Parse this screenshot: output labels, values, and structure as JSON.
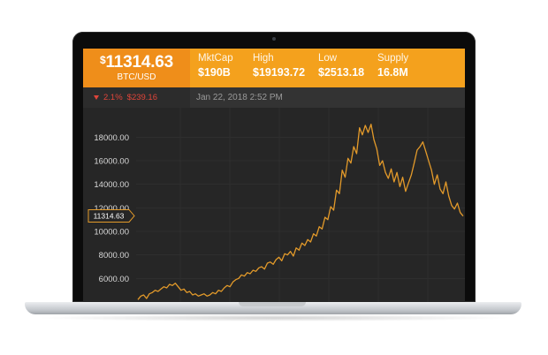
{
  "header": {
    "price": "11314.63",
    "currency_symbol": "$",
    "pair": "BTC/USD",
    "stats": [
      {
        "label": "MktCap",
        "value": "$190B"
      },
      {
        "label": "High",
        "value": "$19193.72"
      },
      {
        "label": "Low",
        "value": "$2513.18"
      },
      {
        "label": "Supply",
        "value": "16.8M"
      }
    ]
  },
  "subbar": {
    "change_percent": "2.1%",
    "change_amount": "$239.16",
    "timestamp": "Jan 22, 2018 2:52 PM"
  },
  "colors": {
    "header_bg": "#f4a11d",
    "price_bg": "#ef8e1a",
    "line": "#e39a2a",
    "negative": "#e0453a",
    "chart_bg": "#262626"
  },
  "chart_data": {
    "type": "line",
    "current_value_label": "11314.63",
    "current_value": 11314.63,
    "y_ticks": [
      "18000.00",
      "16000.00",
      "14000.00",
      "12000.00",
      "10000.00",
      "8000.00",
      "6000.00"
    ],
    "y_tick_values": [
      18000,
      16000,
      14000,
      12000,
      10000,
      8000,
      6000
    ],
    "ylim": [
      4000,
      20500
    ],
    "grid": true,
    "series": [
      {
        "values": [
          4200,
          4500,
          4600,
          4300,
          4700,
          4800,
          5000,
          4900,
          5100,
          5300,
          5200,
          5500,
          5400,
          5600,
          5300,
          5000,
          5100,
          4800,
          4900,
          4600,
          4700,
          4500,
          4600,
          4700,
          4500,
          4600,
          4800,
          4700,
          5000,
          4900,
          5200,
          5400,
          5300,
          5700,
          5900,
          6000,
          6300,
          6200,
          6500,
          6400,
          6700,
          6600,
          6900,
          7000,
          6800,
          7300,
          7400,
          7200,
          7600,
          7800,
          7500,
          8100,
          8000,
          8300,
          7900,
          8600,
          8400,
          9000,
          8800,
          9300,
          9100,
          9800,
          9600,
          10400,
          10200,
          11200,
          11000,
          12100,
          11800,
          13500,
          13200,
          15200,
          14600,
          16200,
          15800,
          17200,
          16600,
          18800,
          18200,
          19000,
          18400,
          19100,
          17800,
          17000,
          15600,
          16000,
          15000,
          14500,
          15300,
          14200,
          15000,
          13800,
          14600,
          13400,
          14100,
          14800,
          15800,
          16900,
          17200,
          17600,
          16800,
          16000,
          15200,
          14000,
          14800,
          13600,
          13200,
          14200,
          13000,
          12200,
          11900,
          12400,
          11600,
          11300
        ]
      }
    ]
  }
}
